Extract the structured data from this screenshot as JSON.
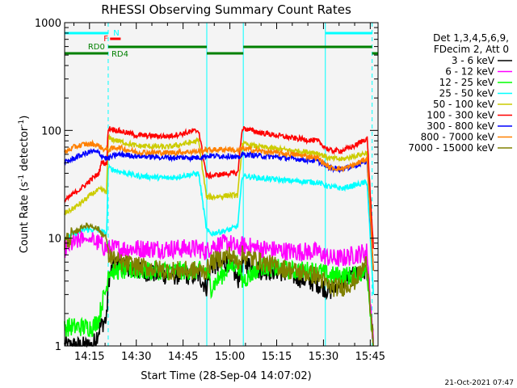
{
  "chart_data": {
    "type": "line",
    "title": "RHESSI Observing Summary Count Rates",
    "xlabel": "Start Time (28-Sep-04 14:07:02)",
    "ylabel_main": "Count Rate (s",
    "ylabel_sup1": "-1",
    "ylabel_mid": " detector",
    "ylabel_sup2": "-1",
    "ylabel_end": ")",
    "yscale": "log",
    "ylim": [
      1,
      1000
    ],
    "xlim_min": [
      7.03,
      107.5
    ],
    "x_unit": "minutes after 14:00",
    "x_ticks": [
      {
        "label": "14:15",
        "value": 15
      },
      {
        "label": "14:30",
        "value": 30
      },
      {
        "label": "14:45",
        "value": 45
      },
      {
        "label": "15:00",
        "value": 60
      },
      {
        "label": "15:15",
        "value": 75
      },
      {
        "label": "15:30",
        "value": 90
      },
      {
        "label": "15:45",
        "value": 105
      }
    ],
    "y_ticks": [
      {
        "label": "1",
        "value": 1
      },
      {
        "label": "10",
        "value": 10
      },
      {
        "label": "100",
        "value": 100
      },
      {
        "label": "1000",
        "value": 1000
      }
    ],
    "legend_header": [
      "Det 1,3,4,5,6,9,",
      "FDecim 2, Att 0"
    ],
    "legend_placement": "right",
    "timestamp": "21-Oct-2021 07:47",
    "series": [
      {
        "name": "3 - 6 keV",
        "color": "#000000",
        "x": [
          7,
          13,
          16,
          18,
          19,
          20.5,
          21,
          22,
          24,
          30,
          40,
          50,
          52.5,
          54,
          60,
          62.5,
          64,
          70,
          75,
          80,
          85,
          88,
          92,
          95,
          100,
          104,
          106
        ],
        "y": [
          1,
          1,
          1,
          1.4,
          1.6,
          1.8,
          4,
          5,
          6,
          5,
          4.5,
          4.5,
          3.5,
          5.5,
          6,
          4,
          6,
          5,
          5,
          4.5,
          4,
          3.8,
          3.2,
          3.8,
          4.5,
          5,
          1
        ]
      },
      {
        "name": "6 - 12 keV",
        "color": "#ff00ff",
        "x": [
          7,
          10,
          13,
          16,
          18,
          19,
          20.5,
          21,
          24,
          30,
          40,
          50,
          52.5,
          54,
          60,
          62.5,
          64,
          70,
          80,
          88,
          92,
          96,
          100,
          104,
          106
        ],
        "y": [
          8,
          9,
          10,
          9.5,
          9,
          8.5,
          8,
          8,
          8,
          8,
          8,
          8,
          7.5,
          8.5,
          9,
          8,
          8.5,
          8,
          7.5,
          7.5,
          6.5,
          6.5,
          7,
          7.5,
          1
        ]
      },
      {
        "name": "12 - 25 keV",
        "color": "#00ff00",
        "x": [
          7,
          13,
          16,
          18,
          19,
          20.5,
          21,
          24,
          30,
          40,
          50,
          52.5,
          54,
          60,
          62.5,
          64,
          70,
          80,
          88,
          92,
          96,
          100,
          104,
          106
        ],
        "y": [
          1.5,
          1.5,
          1.5,
          1.8,
          2.5,
          3.5,
          5,
          5,
          5,
          5,
          5,
          5,
          3.5,
          5.5,
          6,
          4,
          5.5,
          5,
          5,
          4.5,
          4.5,
          4.5,
          5,
          1
        ]
      },
      {
        "name": "25 - 50 keV",
        "color": "#00ffff",
        "x": [
          7,
          10,
          13,
          16,
          18,
          19,
          20.5,
          21,
          24,
          30,
          40,
          50,
          52.5,
          54,
          60,
          62.5,
          64,
          70,
          80,
          88,
          92,
          96,
          100,
          104,
          106
        ],
        "y": [
          10,
          11,
          12,
          12,
          12,
          11.5,
          11,
          45,
          42,
          38,
          36,
          40,
          12,
          11,
          12,
          13,
          38,
          36,
          34,
          33,
          30,
          29,
          31,
          33,
          3
        ]
      },
      {
        "name": "50 - 100 keV",
        "color": "#cccc00",
        "x": [
          7,
          10,
          13,
          16,
          18,
          19,
          20.5,
          21,
          24,
          30,
          40,
          50,
          52.5,
          54,
          60,
          62.5,
          64,
          70,
          80,
          88,
          92,
          96,
          100,
          104,
          106
        ],
        "y": [
          17,
          19,
          22,
          26,
          28,
          28,
          27,
          85,
          80,
          72,
          70,
          80,
          24,
          24,
          25,
          25,
          75,
          70,
          65,
          62,
          55,
          54,
          58,
          62,
          5
        ]
      },
      {
        "name": "100 - 300 keV",
        "color": "#ff0000",
        "x": [
          7,
          10,
          13,
          16,
          18,
          19,
          20.5,
          21,
          24,
          30,
          40,
          50,
          52.5,
          54,
          60,
          62.5,
          64,
          70,
          80,
          88,
          92,
          96,
          100,
          104,
          106
        ],
        "y": [
          22,
          26,
          30,
          36,
          40,
          52,
          48,
          105,
          100,
          90,
          88,
          100,
          38,
          38,
          40,
          40,
          105,
          95,
          85,
          80,
          65,
          65,
          72,
          85,
          8
        ]
      },
      {
        "name": "300 - 800 keV",
        "color": "#0000ff",
        "x": [
          7,
          10,
          13,
          16,
          18,
          19,
          20.5,
          21,
          24,
          30,
          40,
          50,
          52.5,
          54,
          60,
          62.5,
          64,
          70,
          80,
          88,
          92,
          96,
          100,
          104,
          106
        ],
        "y": [
          50,
          55,
          60,
          64,
          62,
          58,
          55,
          55,
          60,
          58,
          56,
          56,
          58,
          58,
          58,
          55,
          60,
          58,
          55,
          52,
          45,
          44,
          47,
          52,
          5
        ]
      },
      {
        "name": "800 - 7000 keV",
        "color": "#ff8000",
        "x": [
          7,
          10,
          13,
          16,
          18,
          19,
          20.5,
          21,
          24,
          30,
          40,
          50,
          52.5,
          54,
          60,
          62.5,
          64,
          70,
          80,
          88,
          92,
          96,
          100,
          104,
          106
        ],
        "y": [
          62,
          70,
          74,
          75,
          72,
          68,
          66,
          66,
          70,
          63,
          62,
          64,
          66,
          66,
          67,
          64,
          68,
          64,
          60,
          56,
          45,
          44,
          48,
          55,
          5
        ]
      },
      {
        "name": "7000 - 15000 keV",
        "color": "#808000",
        "x": [
          7,
          10,
          13,
          16,
          18,
          19,
          20.5,
          21,
          24,
          30,
          40,
          50,
          52.5,
          54,
          60,
          62.5,
          64,
          70,
          80,
          88,
          92,
          96,
          100,
          104,
          106
        ],
        "y": [
          9,
          11,
          13,
          13,
          12,
          11,
          10,
          7,
          6,
          5.5,
          5,
          5,
          5,
          6,
          7,
          6,
          7,
          6,
          5,
          4.5,
          3.5,
          3.5,
          4,
          6,
          1
        ]
      }
    ],
    "vlines": [
      {
        "value": 21,
        "style": "dashed"
      },
      {
        "value": 52.6,
        "style": "solid"
      },
      {
        "value": 64.3,
        "style": "solid"
      },
      {
        "value": 90.6,
        "style": "solid"
      },
      {
        "value": 105.6,
        "style": "dashed"
      }
    ],
    "annotations": [
      {
        "text": "N",
        "color": "#00ffff"
      },
      {
        "text": "F",
        "color": "#ff0000"
      },
      {
        "text": "RD0",
        "color": "#008000"
      },
      {
        "text": "RD4",
        "color": "#008000"
      }
    ],
    "state_bars": [
      {
        "label": "N",
        "color": "#00ffff",
        "ranges": [
          [
            7.03,
            21
          ],
          [
            90.6,
            105.6
          ]
        ]
      },
      {
        "label": "F",
        "color": "#ff0000",
        "ranges": [
          [
            21.6,
            25
          ]
        ]
      },
      {
        "label": "RD0",
        "color": "#008000",
        "ranges": [
          [
            21,
            52.6
          ],
          [
            64.3,
            105.6
          ]
        ]
      },
      {
        "label": "RD4",
        "color": "#008000",
        "ranges": [
          [
            7.03,
            21
          ],
          [
            52.6,
            64.3
          ],
          [
            105.6,
            107.5
          ]
        ]
      }
    ]
  }
}
